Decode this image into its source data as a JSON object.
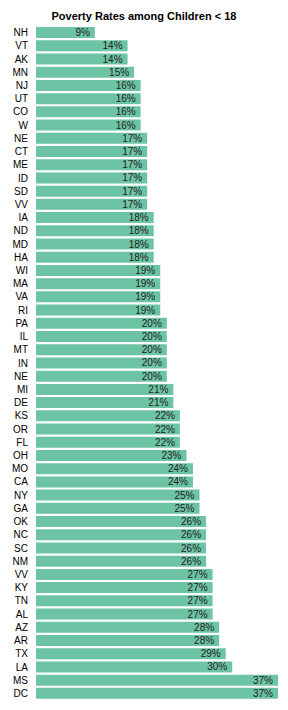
{
  "chart_data": {
    "type": "bar",
    "title": "Poverty Rates among Children < 18",
    "orientation": "horizontal",
    "categories": [
      "NH",
      "VT",
      "AK",
      "MN",
      "NJ",
      "UT",
      "CO",
      "W",
      "NE",
      "CT",
      "ME",
      "ID",
      "SD",
      "VV",
      "IA",
      "ND",
      "MD",
      "HA",
      "WI",
      "MA",
      "VA",
      "RI",
      "PA",
      "IL",
      "MT",
      "IN",
      "NE",
      "MI",
      "DE",
      "KS",
      "OR",
      "FL",
      "OH",
      "MO",
      "CA",
      "NY",
      "GA",
      "OK",
      "NC",
      "SC",
      "NM",
      "VV",
      "KY",
      "TN",
      "AL",
      "AZ",
      "AR",
      "TX",
      "LA",
      "MS",
      "DC"
    ],
    "values": [
      9,
      14,
      14,
      15,
      16,
      16,
      16,
      16,
      17,
      17,
      17,
      17,
      17,
      17,
      18,
      18,
      18,
      18,
      19,
      19,
      19,
      19,
      20,
      20,
      20,
      20,
      20,
      21,
      21,
      22,
      22,
      22,
      23,
      24,
      24,
      25,
      25,
      26,
      26,
      26,
      26,
      27,
      27,
      27,
      27,
      28,
      28,
      29,
      30,
      37,
      37
    ],
    "value_labels": [
      "9%",
      "14%",
      "14%",
      "15%",
      "16%",
      "16%",
      "16%",
      "16%",
      "17%",
      "17%",
      "17%",
      "17%",
      "17%",
      "17%",
      "18%",
      "18%",
      "18%",
      "18%",
      "19%",
      "19%",
      "19%",
      "19%",
      "20%",
      "20%",
      "20%",
      "20%",
      "20%",
      "21%",
      "21%",
      "22%",
      "22%",
      "22%",
      "23%",
      "24%",
      "24%",
      "25%",
      "25%",
      "26%",
      "26%",
      "26%",
      "26%",
      "27%",
      "27%",
      "27%",
      "27%",
      "28%",
      "28%",
      "29%",
      "30%",
      "37%",
      "37%"
    ],
    "color": "#6cc4a4",
    "data_labels": true,
    "tick_labels": "y"
  }
}
